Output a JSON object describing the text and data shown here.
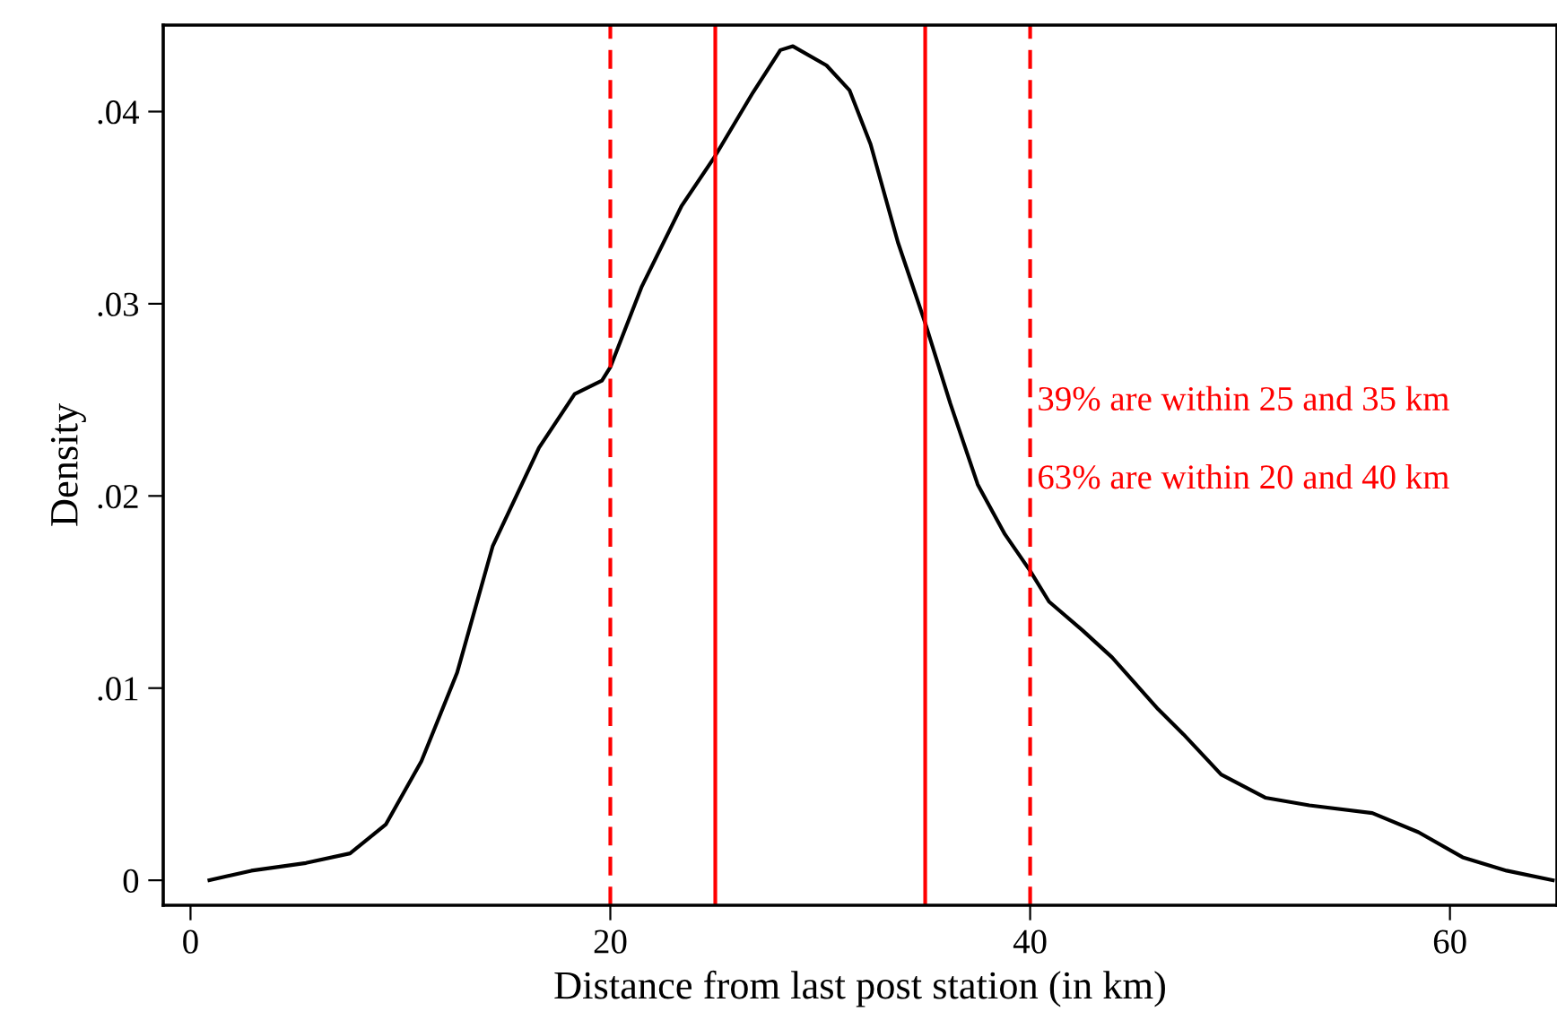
{
  "chart_data": {
    "type": "line",
    "xlabel": "Distance from last post station (in km)",
    "ylabel": "Density",
    "series": [
      {
        "color": "#000000",
        "x": [
          0.9,
          2.9,
          5.5,
          7.6,
          9.3,
          11.0,
          12.7,
          14.4,
          16.6,
          18.3,
          19.6,
          20.0,
          21.5,
          23.4,
          25.0,
          26.8,
          28.1,
          28.7,
          30.3,
          31.4,
          32.4,
          33.7,
          35.0,
          36.2,
          37.5,
          38.8,
          40.0,
          40.9,
          42.5,
          43.9,
          46.1,
          47.3,
          49.1,
          51.2,
          53.3,
          56.3,
          58.5,
          60.6,
          62.7,
          64.9
        ],
        "values": [
          0.0,
          0.0005,
          0.0009,
          0.0014,
          0.0029,
          0.0062,
          0.0108,
          0.0174,
          0.0225,
          0.0253,
          0.026,
          0.0267,
          0.0309,
          0.0351,
          0.0377,
          0.041,
          0.0432,
          0.0434,
          0.0424,
          0.0411,
          0.0383,
          0.0332,
          0.029,
          0.0248,
          0.0206,
          0.018,
          0.0161,
          0.0145,
          0.013,
          0.0116,
          0.0089,
          0.0076,
          0.0055,
          0.0043,
          0.0039,
          0.0035,
          0.0025,
          0.0012,
          0.0005,
          0.0
        ]
      }
    ],
    "xlim": [
      -1.3,
      65.1
    ],
    "ylim": [
      -0.0013,
      0.0445
    ],
    "xticks": [
      0,
      20,
      40,
      60
    ],
    "yticks": [
      0,
      {
        "value": 0.01,
        "label": ".01"
      },
      {
        "value": 0.02,
        "label": ".02"
      },
      {
        "value": 0.03,
        "label": ".03"
      },
      {
        "value": 0.04,
        "label": ".04"
      }
    ],
    "ref_lines": [
      {
        "axis": "x",
        "value": 20,
        "color": "#ff0000",
        "line_style": "dashed"
      },
      {
        "axis": "x",
        "value": 25,
        "color": "#ff0000",
        "line_style": "solid"
      },
      {
        "axis": "x",
        "value": 35,
        "color": "#ff0000",
        "line_style": "solid"
      },
      {
        "axis": "x",
        "value": 40,
        "color": "#ff0000",
        "line_style": "dashed"
      }
    ],
    "annotations": [
      "39% are within 25 and 35 km",
      "63% are within 20 and 40 km"
    ],
    "grid": false,
    "legend": false,
    "marker": "none",
    "line_style": "solid"
  }
}
